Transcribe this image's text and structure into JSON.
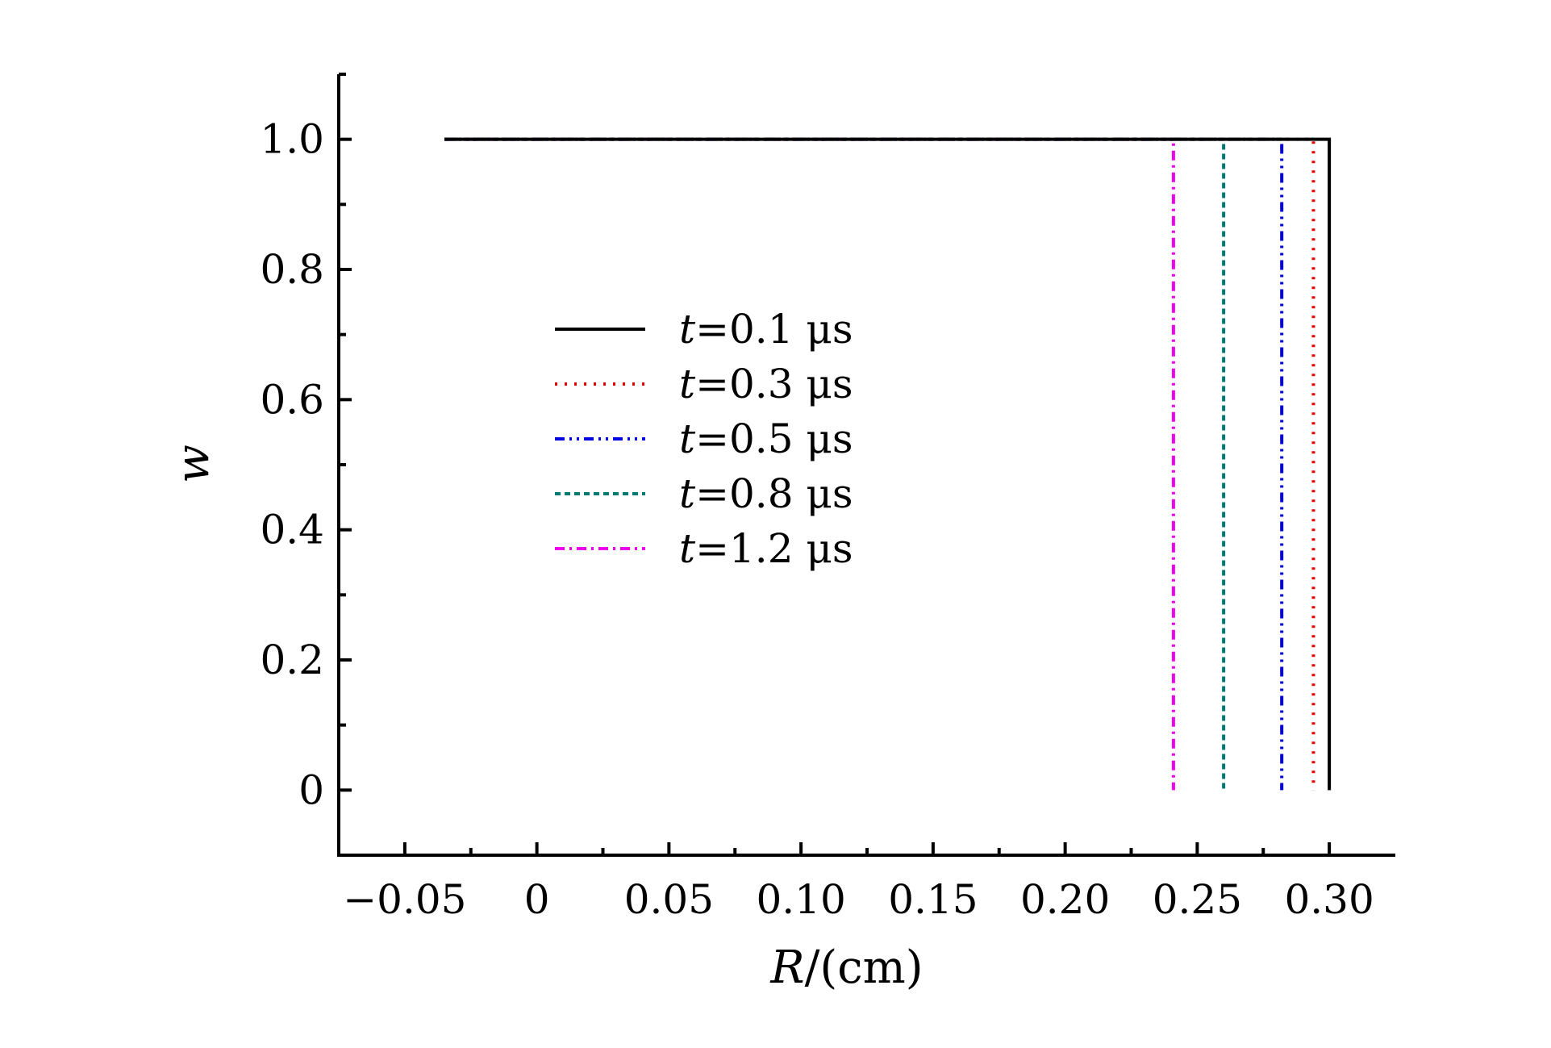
{
  "chart_data": {
    "type": "line",
    "title": "",
    "xlabel": {
      "var": "R",
      "unit": "/(cm)"
    },
    "ylabel": "w",
    "xlim": [
      -0.075,
      0.325
    ],
    "ylim": [
      -0.1,
      1.1
    ],
    "x_ticks": [
      -0.05,
      0,
      0.05,
      0.1,
      0.15,
      0.2,
      0.25,
      0.3
    ],
    "x_tick_labels": [
      "−0.05",
      "0",
      "0.05",
      "0.10",
      "0.15",
      "0.20",
      "0.25",
      "0.30"
    ],
    "x_minor_ticks": [
      -0.025,
      0.025,
      0.075,
      0.125,
      0.175,
      0.225,
      0.275
    ],
    "y_ticks": [
      0,
      0.2,
      0.4,
      0.6,
      0.8,
      1.0
    ],
    "y_tick_labels": [
      "0",
      "0.2",
      "0.4",
      "0.6",
      "0.8",
      "1.0"
    ],
    "y_minor_ticks": [
      0.1,
      0.3,
      0.5,
      0.7,
      0.9,
      1.1
    ],
    "grid": false,
    "legend_position": "center-left",
    "series": [
      {
        "name": "t=0.1 μs",
        "var": "t",
        "value_text": "=0.1 μs",
        "color": "#000000",
        "dash": "solid",
        "x": [
          -0.035,
          0.3,
          0.3
        ],
        "y": [
          1.0,
          1.0,
          0.0
        ]
      },
      {
        "name": "t=0.3 μs",
        "var": "t",
        "value_text": "=0.3 μs",
        "color": "#e00000",
        "dash": "dot",
        "x": [
          -0.035,
          0.294,
          0.294
        ],
        "y": [
          1.0,
          1.0,
          0.0
        ]
      },
      {
        "name": "t=0.5 μs",
        "var": "t",
        "value_text": "=0.5 μs",
        "color": "#0000e0",
        "dash": "dashdotdot",
        "x": [
          -0.035,
          0.282,
          0.282
        ],
        "y": [
          1.0,
          1.0,
          0.0
        ]
      },
      {
        "name": "t=0.8 μs",
        "var": "t",
        "value_text": "=0.8 μs",
        "color": "#007a70",
        "dash": "dash",
        "x": [
          -0.035,
          0.26,
          0.26
        ],
        "y": [
          1.0,
          1.0,
          0.0
        ]
      },
      {
        "name": "t=1.2 μs",
        "var": "t",
        "value_text": "=1.2 μs",
        "color": "#ee00ee",
        "dash": "dashdot",
        "x": [
          -0.035,
          0.241,
          0.241
        ],
        "y": [
          1.0,
          1.0,
          0.0
        ]
      }
    ]
  }
}
